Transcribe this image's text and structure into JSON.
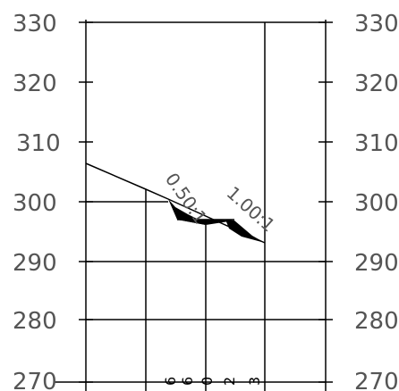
{
  "section": {
    "elevation_labels_left": [
      "330",
      "320",
      "310",
      "300",
      "290",
      "280",
      "270"
    ],
    "elevation_labels_right": [
      "330",
      "320",
      "310",
      "300",
      "290",
      "280",
      "270"
    ],
    "slope_left": "0.50:1",
    "slope_right": "1.00:1",
    "bottom_labels": [
      "6",
      "6",
      "0",
      "2",
      "3"
    ]
  },
  "colors": {
    "line": "#000000",
    "text": "#555555",
    "fill": "#000000"
  }
}
